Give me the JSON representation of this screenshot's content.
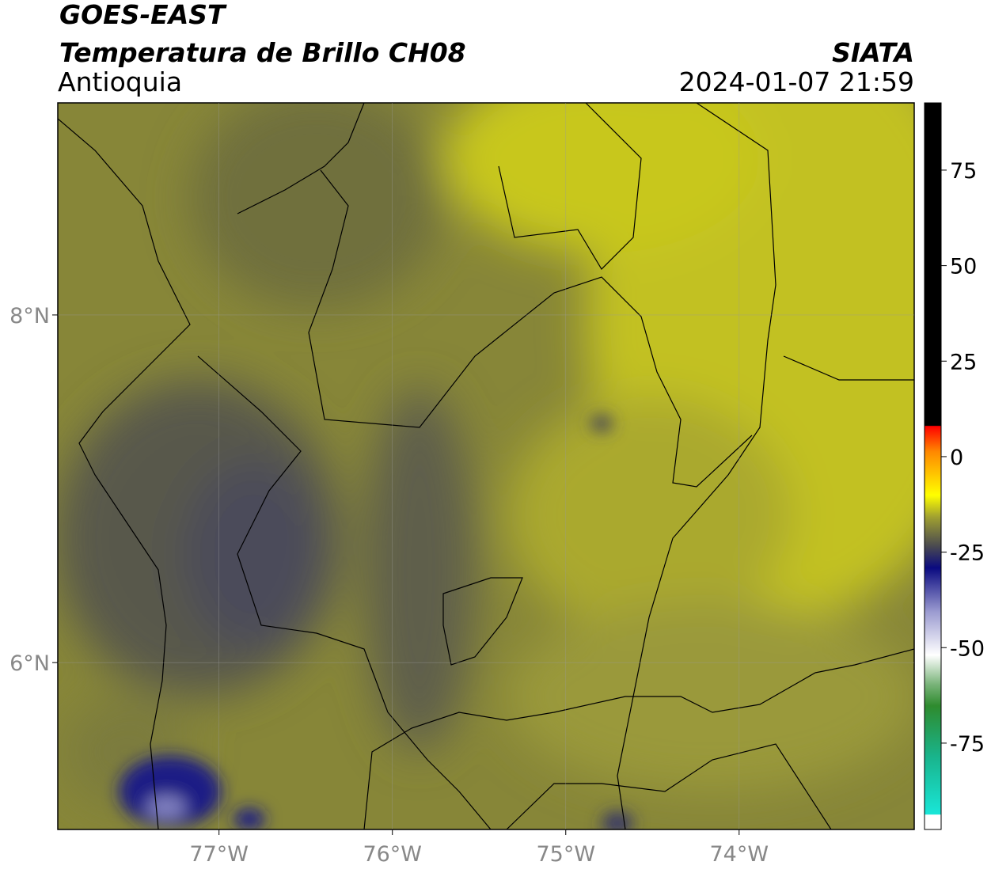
{
  "header": {
    "title": "GOES-EAST",
    "subtitle": "Temperatura de Brillo CH08",
    "region": "Antioquia",
    "source": "SIATA",
    "datetime": "2024-01-07 21:59"
  },
  "map": {
    "xlim": [
      -77.93,
      -72.99
    ],
    "ylim": [
      5.04,
      9.22
    ],
    "xticks": [
      {
        "value": -77,
        "label": "77°W"
      },
      {
        "value": -76,
        "label": "76°W"
      },
      {
        "value": -75,
        "label": "75°W"
      },
      {
        "value": -74,
        "label": "74°W"
      }
    ],
    "yticks": [
      {
        "value": 8,
        "label": "8°N"
      },
      {
        "value": 6,
        "label": "6°N"
      }
    ]
  },
  "colorbar": {
    "lim": [
      -97.6,
      92.6
    ],
    "ticks": [
      75,
      50,
      25,
      0,
      -25,
      -50,
      -75
    ]
  }
}
